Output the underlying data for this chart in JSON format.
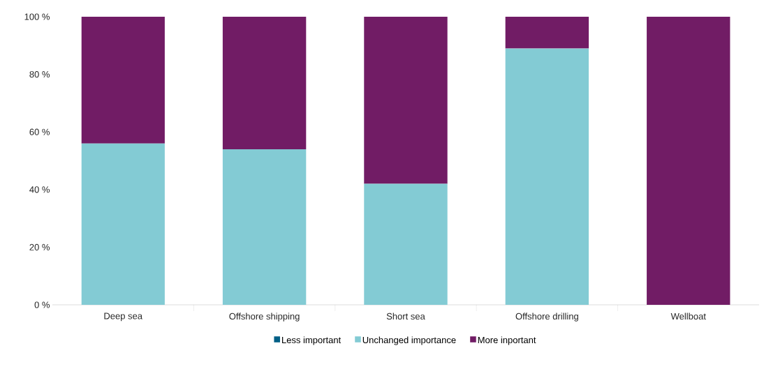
{
  "chart_data": {
    "type": "bar",
    "stacked": true,
    "categories": [
      "Deep sea",
      "Offshore shipping",
      "Short sea",
      "Offshore drilling",
      "Wellboat"
    ],
    "series": [
      {
        "name": "Less important",
        "color": "#005f86",
        "values": [
          0,
          0,
          0,
          0,
          0
        ]
      },
      {
        "name": "Unchanged importance",
        "color": "#83cbd4",
        "values": [
          56,
          54,
          42,
          89,
          0
        ]
      },
      {
        "name": "More inportant",
        "color": "#711c65",
        "values": [
          44,
          46,
          58,
          11,
          100
        ]
      }
    ],
    "ylim": [
      0,
      100
    ],
    "yticks": [
      {
        "value": 0,
        "label": "0 %"
      },
      {
        "value": 20,
        "label": "20 %"
      },
      {
        "value": 40,
        "label": "40 %"
      },
      {
        "value": 60,
        "label": "60 %"
      },
      {
        "value": 80,
        "label": "80 %"
      },
      {
        "value": 100,
        "label": "100 %"
      }
    ],
    "legend": "bottom"
  }
}
